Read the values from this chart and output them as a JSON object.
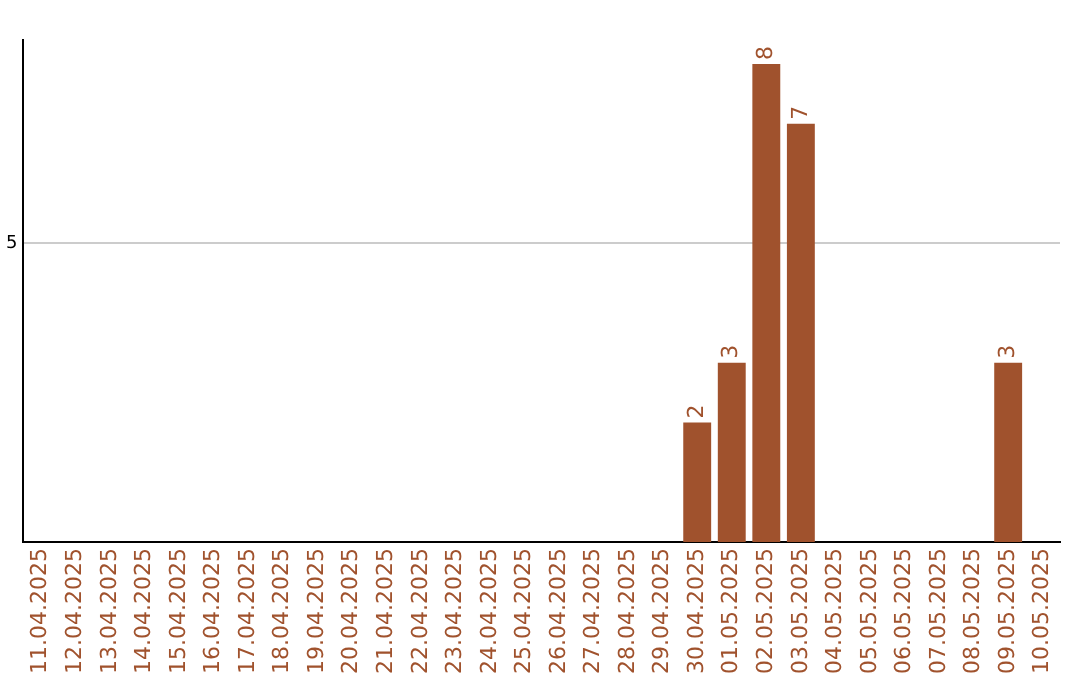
{
  "chart_data": {
    "type": "bar",
    "categories": [
      "11.04.2025",
      "12.04.2025",
      "13.04.2025",
      "14.04.2025",
      "15.04.2025",
      "16.04.2025",
      "17.04.2025",
      "18.04.2025",
      "19.04.2025",
      "20.04.2025",
      "21.04.2025",
      "22.04.2025",
      "23.04.2025",
      "24.04.2025",
      "25.04.2025",
      "26.04.2025",
      "27.04.2025",
      "28.04.2025",
      "29.04.2025",
      "30.04.2025",
      "01.05.2025",
      "02.05.2025",
      "03.05.2025",
      "04.05.2025",
      "05.05.2025",
      "06.05.2025",
      "07.05.2025",
      "08.05.2025",
      "09.05.2025",
      "10.05.2025"
    ],
    "values": [
      null,
      null,
      null,
      null,
      null,
      null,
      null,
      null,
      null,
      null,
      null,
      null,
      null,
      null,
      null,
      null,
      null,
      null,
      null,
      2,
      3,
      8,
      7,
      null,
      null,
      null,
      null,
      null,
      3,
      null
    ],
    "value_labels": [
      null,
      null,
      null,
      null,
      null,
      null,
      null,
      null,
      null,
      null,
      null,
      null,
      null,
      null,
      null,
      null,
      null,
      null,
      null,
      "2",
      "3",
      "8",
      "7",
      null,
      null,
      null,
      null,
      null,
      "3",
      null
    ],
    "ylim": [
      0,
      8.4
    ],
    "yticks": [
      5
    ],
    "grid": "y",
    "color": "#a0522d",
    "legend": false
  }
}
